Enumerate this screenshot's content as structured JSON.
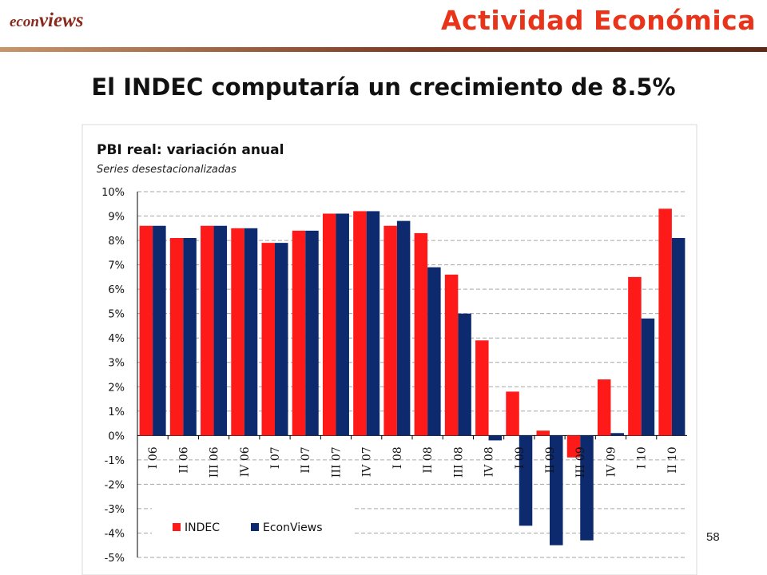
{
  "header": {
    "logo_part1": "econ",
    "logo_part2": "views",
    "section_title": "Actividad Económica"
  },
  "headline": "El INDEC computaría un crecimiento de 8.5%",
  "page_number": "58",
  "colors": {
    "indec": "#ff1a1a",
    "econviews": "#0d2a6e",
    "title_red": "#e8341b"
  },
  "chart_data": {
    "type": "bar",
    "title": "PBI real: variación anual",
    "subtitle": "Series desestacionalizadas",
    "categories": [
      "I 06",
      "II 06",
      "III 06",
      "IV 06",
      "I 07",
      "II 07",
      "III 07",
      "IV 07",
      "I 08",
      "II 08",
      "III 08",
      "IV 08",
      "I 09",
      "II 09",
      "III 09",
      "IV 09",
      "I 10",
      "II 10"
    ],
    "series": [
      {
        "name": "INDEC",
        "values": [
          8.6,
          8.1,
          8.6,
          8.5,
          7.9,
          8.4,
          9.1,
          9.2,
          8.6,
          8.3,
          6.6,
          3.9,
          1.8,
          0.2,
          -0.9,
          2.3,
          6.5,
          9.3
        ]
      },
      {
        "name": "EconViews",
        "values": [
          8.6,
          8.1,
          8.6,
          8.5,
          7.9,
          8.4,
          9.1,
          9.2,
          8.8,
          6.9,
          5.0,
          -0.2,
          -3.7,
          -4.5,
          -4.3,
          0.1,
          4.8,
          8.1
        ]
      }
    ],
    "ylim": [
      -5,
      10
    ],
    "yticks": [
      "-5%",
      "-4%",
      "-3%",
      "-2%",
      "-1%",
      "0%",
      "1%",
      "2%",
      "3%",
      "4%",
      "5%",
      "6%",
      "7%",
      "8%",
      "9%",
      "10%"
    ],
    "grid": true,
    "legend": "bottom-left"
  }
}
